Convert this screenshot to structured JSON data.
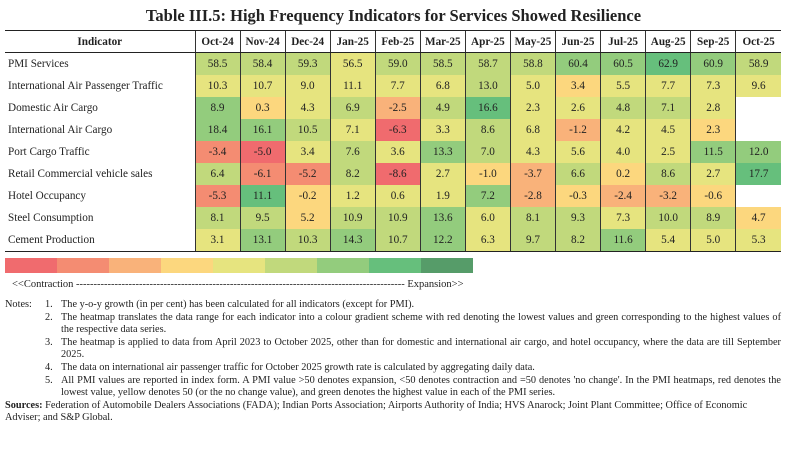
{
  "title": "Table III.5: High Frequency Indicators for Services Showed Resilience",
  "table": {
    "header_indicator": "Indicator",
    "months": [
      "Oct-24",
      "Nov-24",
      "Dec-24",
      "Jan-25",
      "Feb-25",
      "Mar-25",
      "Apr-25",
      "May-25",
      "Jun-25",
      "Jul-25",
      "Aug-25",
      "Sep-25",
      "Oct-25"
    ],
    "palette": [
      "#f06b6e",
      "#f48c72",
      "#f9b27a",
      "#fcd77e",
      "#e6e47f",
      "#c1d97c",
      "#93cc7d",
      "#66bf7c",
      "#569c69"
    ],
    "rows": [
      {
        "indicator": "PMI Services",
        "values": [
          "58.5",
          "58.4",
          "59.3",
          "56.5",
          "59.0",
          "58.5",
          "58.7",
          "58.8",
          "60.4",
          "60.5",
          "62.9",
          "60.9",
          "58.9"
        ],
        "levels": [
          5,
          5,
          5,
          4,
          5,
          5,
          5,
          5,
          6,
          6,
          7,
          6,
          5
        ]
      },
      {
        "indicator": "International Air Passenger Traffic",
        "values": [
          "10.3",
          "10.7",
          "9.0",
          "11.1",
          "7.7",
          "6.8",
          "13.0",
          "5.0",
          "3.4",
          "5.5",
          "7.7",
          "7.3",
          "9.6"
        ],
        "levels": [
          4,
          4,
          4,
          4,
          4,
          4,
          5,
          4,
          3,
          4,
          4,
          4,
          4
        ]
      },
      {
        "indicator": "Domestic Air Cargo",
        "values": [
          "8.9",
          "0.3",
          "4.3",
          "6.9",
          "-2.5",
          "4.9",
          "16.6",
          "2.3",
          "2.6",
          "4.8",
          "7.1",
          "2.8",
          ""
        ],
        "levels": [
          6,
          3,
          4,
          5,
          2,
          5,
          7,
          4,
          4,
          5,
          5,
          4,
          null
        ]
      },
      {
        "indicator": "International Air Cargo",
        "values": [
          "18.4",
          "16.1",
          "10.5",
          "7.1",
          "-6.3",
          "3.3",
          "8.6",
          "6.8",
          "-1.2",
          "4.2",
          "4.5",
          "2.3",
          ""
        ],
        "levels": [
          6,
          6,
          5,
          4,
          0,
          4,
          5,
          4,
          2,
          4,
          4,
          3,
          null
        ]
      },
      {
        "indicator": "Port Cargo Traffic",
        "values": [
          "-3.4",
          "-5.0",
          "3.4",
          "7.6",
          "3.6",
          "13.3",
          "7.0",
          "4.3",
          "5.6",
          "4.0",
          "2.5",
          "11.5",
          "12.0"
        ],
        "levels": [
          1,
          0,
          4,
          5,
          4,
          6,
          5,
          4,
          4,
          4,
          4,
          6,
          6
        ]
      },
      {
        "indicator": "Retail Commercial vehicle sales",
        "values": [
          "6.4",
          "-6.1",
          "-5.2",
          "8.2",
          "-8.6",
          "2.7",
          "-1.0",
          "-3.7",
          "6.6",
          "0.2",
          "8.6",
          "2.7",
          "17.7"
        ],
        "levels": [
          5,
          1,
          1,
          5,
          0,
          4,
          3,
          2,
          5,
          3,
          5,
          4,
          7
        ]
      },
      {
        "indicator": "Hotel Occupancy",
        "values": [
          "-5.3",
          "11.1",
          "-0.2",
          "1.2",
          "0.6",
          "1.9",
          "7.2",
          "-2.8",
          "-0.3",
          "-2.4",
          "-3.2",
          "-0.6",
          ""
        ],
        "levels": [
          1,
          7,
          3,
          4,
          4,
          4,
          6,
          2,
          3,
          2,
          2,
          3,
          null
        ]
      },
      {
        "indicator": "Steel Consumption",
        "values": [
          "8.1",
          "9.5",
          "5.2",
          "10.9",
          "10.9",
          "13.6",
          "6.0",
          "8.1",
          "9.3",
          "7.3",
          "10.0",
          "8.9",
          "4.7"
        ],
        "levels": [
          5,
          5,
          3,
          5,
          5,
          6,
          4,
          5,
          5,
          4,
          5,
          5,
          3
        ]
      },
      {
        "indicator": "Cement Production",
        "values": [
          "3.1",
          "13.1",
          "10.3",
          "14.3",
          "10.7",
          "12.2",
          "6.3",
          "9.7",
          "8.2",
          "11.6",
          "5.4",
          "5.0",
          "5.3"
        ],
        "levels": [
          4,
          6,
          5,
          6,
          5,
          6,
          4,
          5,
          5,
          6,
          4,
          4,
          4
        ]
      }
    ]
  },
  "legend": {
    "scale_text": "<<Contraction ---------------------------------------------------------------------------------------------- Expansion>>"
  },
  "notes": {
    "label": "Notes:",
    "items": [
      {
        "num": "1.",
        "text": "The y-o-y growth (in per cent) has been calculated for all indicators (except for PMI)."
      },
      {
        "num": "2.",
        "text": "The heatmap translates the data range for each indicator into a colour gradient scheme with red denoting the lowest values and green corresponding to the highest values of the respective data series."
      },
      {
        "num": "3.",
        "text": "The heatmap is applied to data from April 2023 to October 2025, other than for domestic and international air cargo, and hotel occupancy, where the data are till September 2025."
      },
      {
        "num": "4.",
        "text": "The data on international air passenger traffic for October 2025 growth rate is calculated by aggregating daily data."
      },
      {
        "num": "5.",
        "text": "All PMI values are reported in index form. A PMI value >50 denotes expansion, <50 denotes contraction and =50 denotes 'no change'. In the PMI heatmaps, red denotes the lowest value, yellow denotes 50 (or the no change value), and green denotes the highest value in each of the PMI series."
      }
    ]
  },
  "sources": {
    "label": "Sources:",
    "text": "Federation of Automobile Dealers Associations (FADA); Indian Ports Association; Airports Authority of India; HVS Anarock; Joint Plant Committee; Office of Economic Adviser; and S&P Global."
  }
}
